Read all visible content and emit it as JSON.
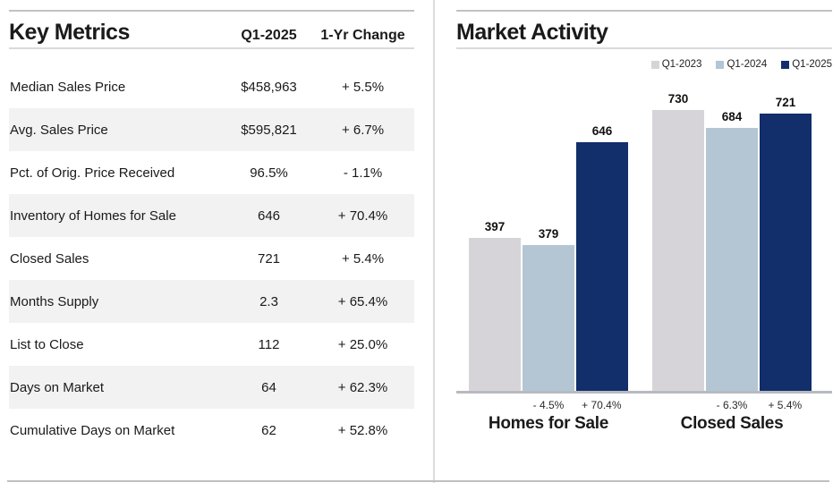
{
  "left_panel": {
    "title": "Key Metrics",
    "col_headers": {
      "period": "Q1-2025",
      "change": "1-Yr Change"
    },
    "rows": [
      {
        "label": "Median Sales Price",
        "value": "$458,963",
        "change": "+ 5.5%"
      },
      {
        "label": "Avg. Sales Price",
        "value": "$595,821",
        "change": "+ 6.7%"
      },
      {
        "label": "Pct. of Orig. Price Received",
        "value": "96.5%",
        "change": "- 1.1%"
      },
      {
        "label": "Inventory of Homes for Sale",
        "value": "646",
        "change": "+ 70.4%"
      },
      {
        "label": "Closed Sales",
        "value": "721",
        "change": "+ 5.4%"
      },
      {
        "label": "Months Supply",
        "value": "2.3",
        "change": "+ 65.4%"
      },
      {
        "label": "List to Close",
        "value": "112",
        "change": "+ 25.0%"
      },
      {
        "label": "Days on Market",
        "value": "64",
        "change": "+ 62.3%"
      },
      {
        "label": "Cumulative Days on Market",
        "value": "62",
        "change": "+ 52.8%"
      }
    ]
  },
  "right_panel": {
    "title": "Market Activity"
  },
  "chart_data": {
    "type": "bar",
    "title": "Market Activity",
    "categories": [
      "Homes for Sale",
      "Closed Sales"
    ],
    "series": [
      {
        "name": "Q1-2023",
        "color": "#d7d4d9",
        "values": [
          397,
          730
        ]
      },
      {
        "name": "Q1-2024",
        "color": "#b4c6d3",
        "values": [
          379,
          684
        ]
      },
      {
        "name": "Q1-2025",
        "color": "#122e6b",
        "values": [
          646,
          721
        ]
      }
    ],
    "pct_changes": [
      {
        "category": "Homes for Sale",
        "q1_2024": "- 4.5%",
        "q1_2025": "+ 70.4%"
      },
      {
        "category": "Closed Sales",
        "q1_2024": "- 6.3%",
        "q1_2025": "+ 5.4%"
      }
    ],
    "ylim": [
      0,
      730
    ],
    "grid": false,
    "legend_position": "top-right",
    "axis_color": "#b7bac0"
  }
}
